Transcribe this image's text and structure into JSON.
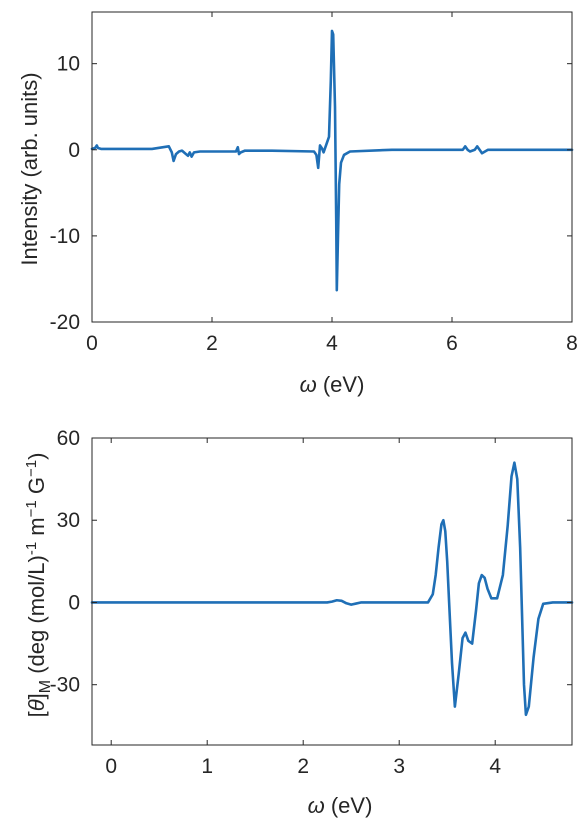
{
  "chart_data": [
    {
      "type": "line",
      "title": "",
      "xlabel_symbol": "ω",
      "xlabel_unit": " (eV)",
      "ylabel": "Intensity (arb. units)",
      "xlim": [
        0,
        8
      ],
      "ylim": [
        -20,
        16
      ],
      "xticks": [
        0,
        2,
        4,
        6,
        8
      ],
      "yticks": [
        -20,
        -10,
        0,
        10
      ],
      "grid": false,
      "legend": "none",
      "series": [
        {
          "color": "#1f6fb6",
          "x": [
            0,
            0.05,
            0.08,
            0.1,
            0.15,
            0.5,
            1.0,
            1.28,
            1.33,
            1.36,
            1.4,
            1.45,
            1.5,
            1.55,
            1.6,
            1.63,
            1.66,
            1.7,
            1.8,
            2.4,
            2.43,
            2.45,
            2.48,
            2.55,
            3.0,
            3.7,
            3.74,
            3.77,
            3.8,
            3.83,
            3.86,
            3.9,
            3.95,
            3.98,
            4.0,
            4.02,
            4.05,
            4.07,
            4.08,
            4.1,
            4.12,
            4.15,
            4.2,
            4.3,
            5.0,
            6.0,
            6.18,
            6.22,
            6.26,
            6.3,
            6.38,
            6.42,
            6.46,
            6.5,
            6.55,
            6.6,
            6.7,
            7.0,
            8.0
          ],
          "y": [
            0.1,
            0.2,
            0.5,
            0.2,
            0.1,
            0.1,
            0.1,
            0.4,
            -0.3,
            -1.3,
            -0.5,
            -0.2,
            -0.1,
            -0.4,
            -0.7,
            -0.3,
            -0.8,
            -0.3,
            -0.2,
            -0.2,
            0.3,
            -0.5,
            -0.3,
            -0.1,
            -0.1,
            -0.2,
            -0.6,
            -2.1,
            0.5,
            0.2,
            -0.3,
            0.5,
            1.5,
            8.0,
            13.8,
            13.4,
            5.0,
            -8.0,
            -16.3,
            -10.0,
            -4.0,
            -1.5,
            -0.6,
            -0.2,
            0.0,
            0.0,
            0.0,
            0.4,
            0.0,
            -0.2,
            0.0,
            0.4,
            0.0,
            -0.4,
            -0.2,
            0.0,
            0.0,
            0.0,
            0.0
          ]
        }
      ]
    },
    {
      "type": "line",
      "title": "",
      "xlabel_symbol": "ω",
      "xlabel_unit": " (eV)",
      "ylabel_prefix": "[",
      "ylabel_theta": "θ",
      "ylabel_bracket": "]",
      "ylabel_sub": "M",
      "ylabel_text1": " (deg (mol/L)",
      "ylabel_sup1": "-1",
      "ylabel_text2": " m",
      "ylabel_sup2": "−1",
      "ylabel_text3": " G",
      "ylabel_sup3": "−1",
      "ylabel_text4": ")",
      "xlim": [
        -0.2,
        4.8
      ],
      "ylim": [
        -52,
        60
      ],
      "xticks": [
        0,
        1,
        2,
        3,
        4
      ],
      "yticks": [
        -30,
        0,
        30,
        60
      ],
      "grid": false,
      "legend": "none",
      "series": [
        {
          "color": "#1f6fb6",
          "x": [
            -0.2,
            0,
            1,
            2,
            2.25,
            2.3,
            2.35,
            2.4,
            2.45,
            2.5,
            2.55,
            2.6,
            3,
            3.3,
            3.35,
            3.38,
            3.41,
            3.44,
            3.46,
            3.48,
            3.5,
            3.52,
            3.55,
            3.58,
            3.62,
            3.66,
            3.69,
            3.72,
            3.76,
            3.8,
            3.83,
            3.86,
            3.89,
            3.92,
            3.96,
            4.02,
            4.08,
            4.13,
            4.17,
            4.2,
            4.23,
            4.26,
            4.28,
            4.3,
            4.32,
            4.35,
            4.4,
            4.45,
            4.5,
            4.6,
            4.8
          ],
          "y": [
            0,
            0,
            0,
            0,
            0,
            0.3,
            0.8,
            0.6,
            -0.3,
            -0.8,
            -0.4,
            0,
            0,
            0,
            3,
            10,
            20,
            28.5,
            30,
            26,
            15,
            0,
            -22,
            -38,
            -26,
            -13,
            -11,
            -14,
            -15,
            -3,
            7,
            10,
            9,
            5,
            1.5,
            1.5,
            10,
            28,
            46,
            51,
            45,
            20,
            -5,
            -30,
            -41,
            -38,
            -20,
            -6,
            -0.5,
            0,
            0
          ]
        }
      ]
    }
  ]
}
